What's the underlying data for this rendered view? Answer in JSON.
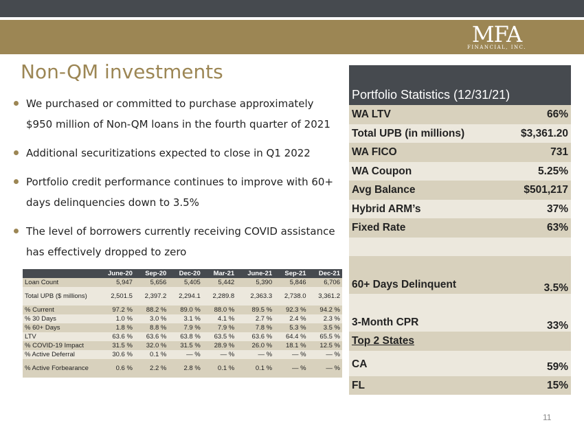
{
  "logo": {
    "main": "MFA",
    "sub": "FINANCIAL, INC."
  },
  "title": "Non-QM investments",
  "bullets": [
    "We purchased or committed to purchase approximately $950 million of Non-QM loans in the fourth quarter of 2021",
    "Additional securitizations expected to close in Q1 2022",
    "Portfolio credit performance continues to improve with 60+ days delinquencies down to 3.5%",
    "The level of borrowers currently receiving COVID assistance has effectively dropped to zero"
  ],
  "quarterly_table": {
    "columns": [
      "",
      "June-20",
      "Sep-20",
      "Dec-20",
      "Mar-21",
      "June-21",
      "Sep-21",
      "Dec-21"
    ],
    "rows": [
      [
        "Loan Count",
        "5,947",
        "5,656",
        "5,405",
        "5,442",
        "5,390",
        "5,846",
        "6,706"
      ],
      [
        "Total UPB ($ millions)",
        "2,501.5",
        "2,397.2",
        "2,294.1",
        "2,289.8",
        "2,363.3",
        "2,738.0",
        "3,361.2"
      ],
      [
        "% Current",
        "97.2 %",
        "88.2 %",
        "89.0 %",
        "88.0 %",
        "89.5 %",
        "92.3 %",
        "94.2 %"
      ],
      [
        "% 30 Days",
        "1.0 %",
        "3.0 %",
        "3.1 %",
        "4.1 %",
        "2.7 %",
        "2.4 %",
        "2.3 %"
      ],
      [
        "% 60+ Days",
        "1.8 %",
        "8.8 %",
        "7.9 %",
        "7.9 %",
        "7.8 %",
        "5.3 %",
        "3.5 %"
      ],
      [
        "LTV",
        "63.6 %",
        "63.6 %",
        "63.8 %",
        "63.5 %",
        "63.6 %",
        "64.4 %",
        "65.5 %"
      ],
      [
        "% COVID-19 Impact",
        "31.5 %",
        "32.0 %",
        "31.5 %",
        "28.9 %",
        "26.0 %",
        "18.1 %",
        "12.5 %"
      ],
      [
        "% Active Deferral",
        "30.6 %",
        "0.1 %",
        "— %",
        "— %",
        "— %",
        "— %",
        "— %"
      ],
      [
        "% Active Forbearance",
        "0.6 %",
        "2.2 %",
        "2.8 %",
        "0.1 %",
        "0.1 %",
        "— %",
        "— %"
      ]
    ]
  },
  "portfolio_stats": {
    "title": "Portfolio Statistics (12/31/21)",
    "rows": [
      {
        "label": "WA LTV",
        "value": "66%"
      },
      {
        "label": "Total UPB (in millions)",
        "value": "$3,361.20"
      },
      {
        "label": "WA FICO",
        "value": "731"
      },
      {
        "label": "WA Coupon",
        "value": "5.25%"
      },
      {
        "label": "Avg Balance",
        "value": "$501,217"
      },
      {
        "label": "Hybrid ARM’s",
        "value": "37%"
      },
      {
        "label": "Fixed Rate",
        "value": "63%"
      },
      {
        "label": "60+ Days Delinquent",
        "value": "3.5%"
      },
      {
        "label": "3-Month CPR",
        "value": "33%"
      },
      {
        "label": "Top 2 States",
        "value": ""
      },
      {
        "label": "CA",
        "value": "59%"
      },
      {
        "label": "FL",
        "value": "15%"
      }
    ]
  },
  "page_number": "11",
  "colors": {
    "accent": "#9c8654",
    "dark": "#464a4f",
    "row_odd": "#d8d1bd",
    "row_even": "#ece8dd"
  }
}
